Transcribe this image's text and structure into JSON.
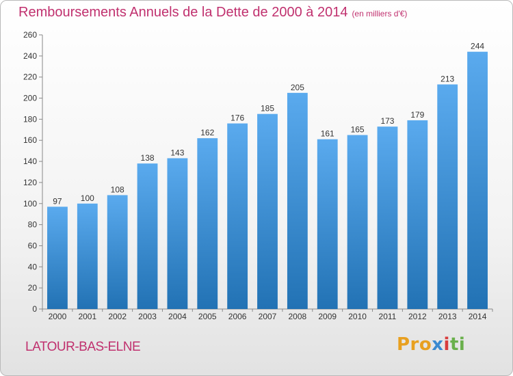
{
  "header": {
    "title": "Remboursements Annuels de la Dette de 2000 à 2014",
    "unit": "(en milliers d'€)"
  },
  "footer": {
    "commune": "LATOUR-BAS-ELNE",
    "logo": {
      "p1": "Pro",
      "p2": "x",
      "p3": "i",
      "p4": "ti"
    }
  },
  "colors": {
    "title": "#c0306e",
    "bar_top": "#5aaaee",
    "bar_bottom": "#2272b4"
  },
  "chart_data": {
    "type": "bar",
    "categories": [
      "2000",
      "2001",
      "2002",
      "2003",
      "2004",
      "2005",
      "2006",
      "2007",
      "2008",
      "2009",
      "2010",
      "2011",
      "2012",
      "2013",
      "2014"
    ],
    "values": [
      97,
      100,
      108,
      138,
      143,
      162,
      176,
      185,
      205,
      161,
      165,
      173,
      179,
      213,
      244
    ],
    "yticks": [
      0,
      20,
      40,
      60,
      80,
      100,
      120,
      140,
      160,
      180,
      200,
      220,
      240,
      260
    ],
    "ylim": [
      0,
      260
    ],
    "grid": false,
    "data_labels": true
  }
}
